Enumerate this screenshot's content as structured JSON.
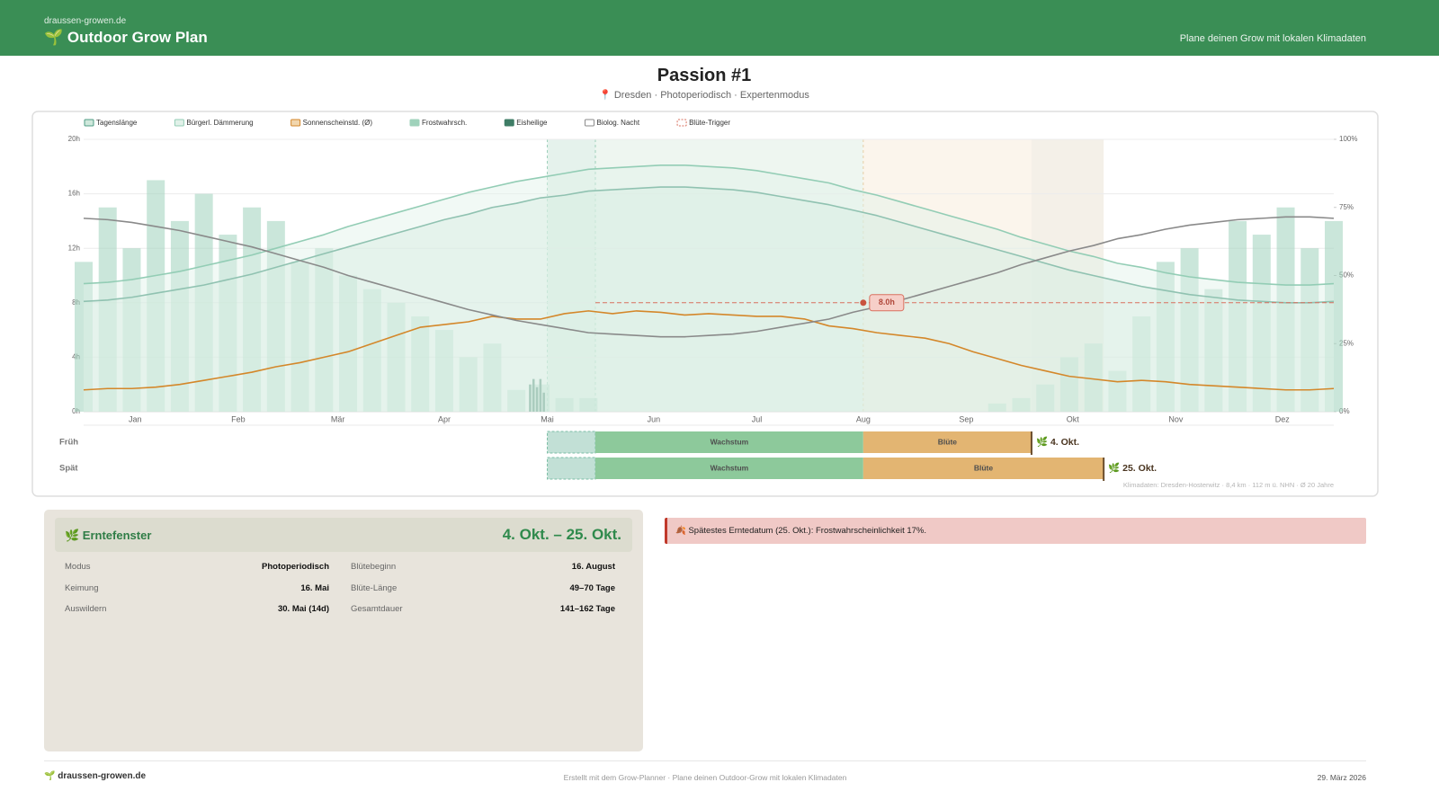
{
  "header": {
    "site": "draussen-growen.de",
    "title": "🌱 Outdoor Grow Plan",
    "tagline": "Plane deinen Grow mit lokalen Klimadaten"
  },
  "plan": {
    "title": "Passion #1",
    "subtitle": "📍 Dresden · Photoperiodisch · Expertenmodus"
  },
  "chart_data": {
    "type": "combo",
    "x": [
      1,
      8,
      15,
      22,
      29,
      36,
      43,
      50,
      57,
      64,
      71,
      78,
      85,
      92,
      99,
      106,
      113,
      120,
      127,
      134,
      141,
      148,
      155,
      162,
      169,
      176,
      183,
      190,
      197,
      204,
      211,
      218,
      225,
      232,
      239,
      246,
      253,
      260,
      267,
      274,
      281,
      288,
      295,
      302,
      309,
      316,
      323,
      330,
      337,
      344,
      351,
      358,
      365
    ],
    "xlim": [
      1,
      365
    ],
    "xticks": [
      {
        "value": 16,
        "label": "Jan"
      },
      {
        "value": 46,
        "label": "Feb"
      },
      {
        "value": 75,
        "label": "Mär"
      },
      {
        "value": 106,
        "label": "Apr"
      },
      {
        "value": 136,
        "label": "Mai"
      },
      {
        "value": 167,
        "label": "Jun"
      },
      {
        "value": 197,
        "label": "Jul"
      },
      {
        "value": 228,
        "label": "Aug"
      },
      {
        "value": 258,
        "label": "Sep"
      },
      {
        "value": 289,
        "label": "Okt"
      },
      {
        "value": 319,
        "label": "Nov"
      },
      {
        "value": 350,
        "label": "Dez"
      }
    ],
    "ylim": [
      0,
      20
    ],
    "yticks": [
      {
        "value": 0,
        "label": "0h"
      },
      {
        "value": 4,
        "label": "4h"
      },
      {
        "value": 8,
        "label": "8h"
      },
      {
        "value": 12,
        "label": "12h"
      },
      {
        "value": 16,
        "label": "16h"
      },
      {
        "value": 20,
        "label": "20h"
      }
    ],
    "y2lim": [
      0,
      100
    ],
    "y2ticks": [
      {
        "value": 0,
        "label": "0%"
      },
      {
        "value": 25,
        "label": "25%"
      },
      {
        "value": 50,
        "label": "50%"
      },
      {
        "value": 75,
        "label": "75%"
      },
      {
        "value": 100,
        "label": "100%"
      }
    ],
    "grid": true,
    "series": [
      {
        "name": "Tagenslänge",
        "type": "area",
        "color": "#4f9c83",
        "fill": "#cfe8dc",
        "values": [
          8.1,
          8.2,
          8.4,
          8.7,
          9.0,
          9.3,
          9.7,
          10.1,
          10.6,
          11.1,
          11.6,
          12.1,
          12.6,
          13.1,
          13.6,
          14.1,
          14.5,
          15.0,
          15.3,
          15.7,
          15.9,
          16.2,
          16.3,
          16.4,
          16.5,
          16.5,
          16.4,
          16.3,
          16.1,
          15.8,
          15.5,
          15.2,
          14.8,
          14.4,
          13.9,
          13.4,
          12.9,
          12.4,
          11.9,
          11.4,
          10.9,
          10.4,
          10.0,
          9.6,
          9.2,
          8.9,
          8.6,
          8.4,
          8.2,
          8.1,
          8.0,
          8.0,
          8.1
        ]
      },
      {
        "name": "Bürgerl. Dämmerung",
        "type": "area",
        "color": "#93cdb5",
        "fill": "#e1f1e9",
        "values": [
          9.4,
          9.5,
          9.7,
          10.0,
          10.3,
          10.7,
          11.1,
          11.5,
          12.0,
          12.5,
          13.0,
          13.6,
          14.1,
          14.6,
          15.1,
          15.6,
          16.1,
          16.5,
          16.9,
          17.2,
          17.5,
          17.8,
          17.9,
          18.0,
          18.1,
          18.1,
          18.0,
          17.9,
          17.7,
          17.4,
          17.1,
          16.8,
          16.3,
          15.9,
          15.4,
          14.9,
          14.4,
          13.9,
          13.4,
          12.8,
          12.3,
          11.8,
          11.4,
          10.9,
          10.6,
          10.2,
          9.9,
          9.7,
          9.5,
          9.4,
          9.3,
          9.3,
          9.4
        ]
      },
      {
        "name": "Sonnenscheinstd. (Ø)",
        "type": "line",
        "color": "#d4872a",
        "fill": "#f1d6ad",
        "values": [
          1.6,
          1.7,
          1.7,
          1.8,
          2.0,
          2.3,
          2.6,
          2.9,
          3.3,
          3.6,
          4.0,
          4.4,
          5.0,
          5.6,
          6.2,
          6.4,
          6.6,
          7.0,
          6.8,
          6.8,
          7.2,
          7.4,
          7.2,
          7.4,
          7.3,
          7.1,
          7.2,
          7.1,
          7.0,
          7.0,
          6.8,
          6.3,
          6.1,
          5.8,
          5.6,
          5.4,
          5.0,
          4.4,
          3.9,
          3.4,
          3.0,
          2.6,
          2.4,
          2.2,
          2.3,
          2.2,
          2.0,
          1.9,
          1.8,
          1.7,
          1.6,
          1.6,
          1.7
        ]
      },
      {
        "name": "Frostwahrsch.",
        "type": "bar",
        "axis": "y2",
        "color": "#9fd2bb",
        "values": [
          55,
          75,
          60,
          85,
          70,
          80,
          65,
          75,
          70,
          55,
          60,
          50,
          45,
          40,
          35,
          30,
          20,
          25,
          8,
          10,
          5,
          5,
          0,
          0,
          0,
          0,
          0,
          0,
          0,
          0,
          0,
          0,
          0,
          0,
          0,
          0,
          0,
          0,
          3,
          5,
          10,
          20,
          25,
          15,
          35,
          55,
          60,
          45,
          70,
          65,
          75,
          60,
          70
        ]
      },
      {
        "name": "Eisheilige",
        "type": "bar",
        "axis": "y2",
        "color": "#3f7d66",
        "x": [
          131,
          132,
          133,
          134,
          135
        ],
        "values": [
          10,
          12,
          9,
          12,
          7
        ]
      },
      {
        "name": "Biolog. Nacht",
        "type": "line",
        "color": "#8a8a8a",
        "fill": "#ffffff",
        "values": [
          14.2,
          14.1,
          13.9,
          13.6,
          13.3,
          12.9,
          12.5,
          12.1,
          11.6,
          11.1,
          10.6,
          10.0,
          9.5,
          9.0,
          8.5,
          8.0,
          7.5,
          7.1,
          6.7,
          6.4,
          6.1,
          5.8,
          5.7,
          5.6,
          5.5,
          5.5,
          5.6,
          5.7,
          5.9,
          6.2,
          6.5,
          6.8,
          7.3,
          7.7,
          8.2,
          8.7,
          9.2,
          9.7,
          10.2,
          10.8,
          11.3,
          11.8,
          12.2,
          12.7,
          13.0,
          13.4,
          13.7,
          13.9,
          14.1,
          14.2,
          14.3,
          14.3,
          14.2
        ]
      }
    ],
    "flower_trigger": {
      "name": "Blüte-Trigger",
      "value": 8,
      "label": "8.0h",
      "color": "#d9705f"
    },
    "timeline": {
      "rows": [
        {
          "label": "Früh",
          "germination": [
            136,
            150
          ],
          "harvest": "🌿 4. Okt.",
          "phases": [
            {
              "label": "Wachstum",
              "start": 150,
              "end": 228,
              "color": "#8dc99b"
            },
            {
              "label": "Blüte",
              "start": 228,
              "end": 277,
              "color": "#e3b572"
            }
          ]
        },
        {
          "label": "Spät",
          "germination": [
            136,
            150
          ],
          "harvest": "🌿 25. Okt.",
          "phases": [
            {
              "label": "Wachstum",
              "start": 150,
              "end": 228,
              "color": "#8dc99b"
            },
            {
              "label": "Blüte",
              "start": 228,
              "end": 298,
              "color": "#e3b572"
            }
          ]
        }
      ]
    },
    "source": "Klimadaten: Dresden-Hosterwitz · 8,4 km · 112 m ü. NHN · Ø 20 Jahre"
  },
  "harvest": {
    "title": "🌿 Erntefenster",
    "range": "4. Okt. – 25. Okt.",
    "rows": [
      [
        "Modus",
        "Photoperiodisch",
        "Blütebeginn",
        "16. August"
      ],
      [
        "Keimung",
        "16. Mai",
        "Blüte-Länge",
        "49–70 Tage"
      ],
      [
        "Auswildern",
        "30. Mai (14d)",
        "Gesamtdauer",
        "141–162 Tage"
      ]
    ]
  },
  "alert": "🍂 Spätestes Erntedatum (25. Okt.): Frostwahrscheinlichkeit 17%.",
  "footer": {
    "brand": "🌱 draussen-growen.de",
    "note": "Erstellt mit dem Grow-Planner · Plane deinen Outdoor-Grow mit lokalen Klimadaten",
    "date": "29. März 2026"
  }
}
